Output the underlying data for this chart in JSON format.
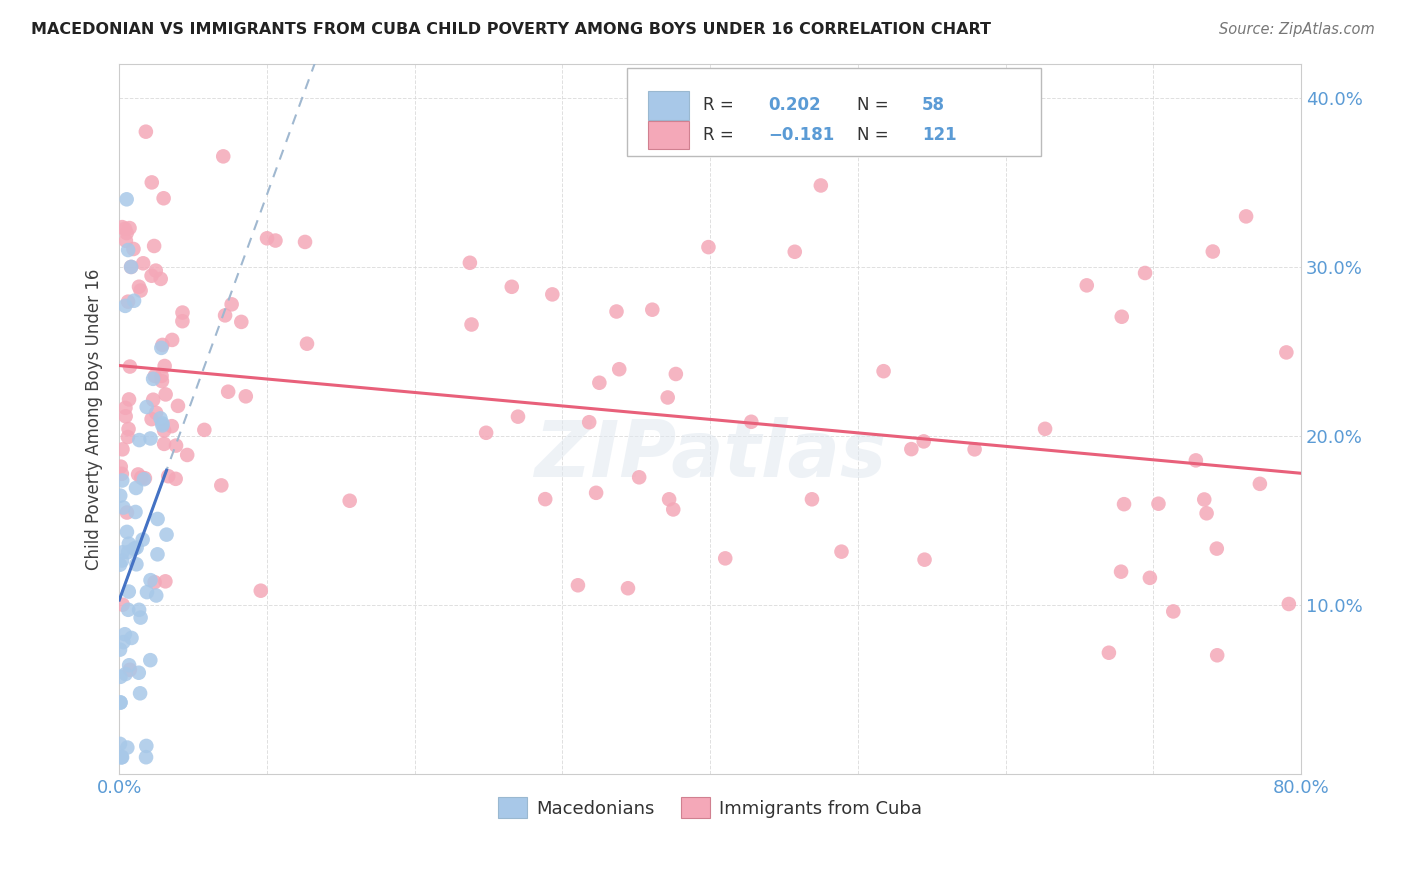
{
  "title": "MACEDONIAN VS IMMIGRANTS FROM CUBA CHILD POVERTY AMONG BOYS UNDER 16 CORRELATION CHART",
  "source": "Source: ZipAtlas.com",
  "ylabel": "Child Poverty Among Boys Under 16",
  "xlim": [
    0.0,
    0.8
  ],
  "ylim": [
    0.0,
    0.42
  ],
  "macedonian_R": 0.202,
  "macedonian_N": 58,
  "cuba_R": -0.181,
  "cuba_N": 121,
  "macedonian_color": "#a8c8e8",
  "cuba_color": "#f4a8b8",
  "macedonian_line_color": "#4472c4",
  "cuba_line_color": "#e8607a",
  "dashed_line_color": "#a0b8d0",
  "background_color": "#ffffff",
  "grid_color": "#d8d8d8",
  "watermark": "ZIPatlas",
  "tick_color": "#5b9bd5",
  "label_color": "#404040"
}
